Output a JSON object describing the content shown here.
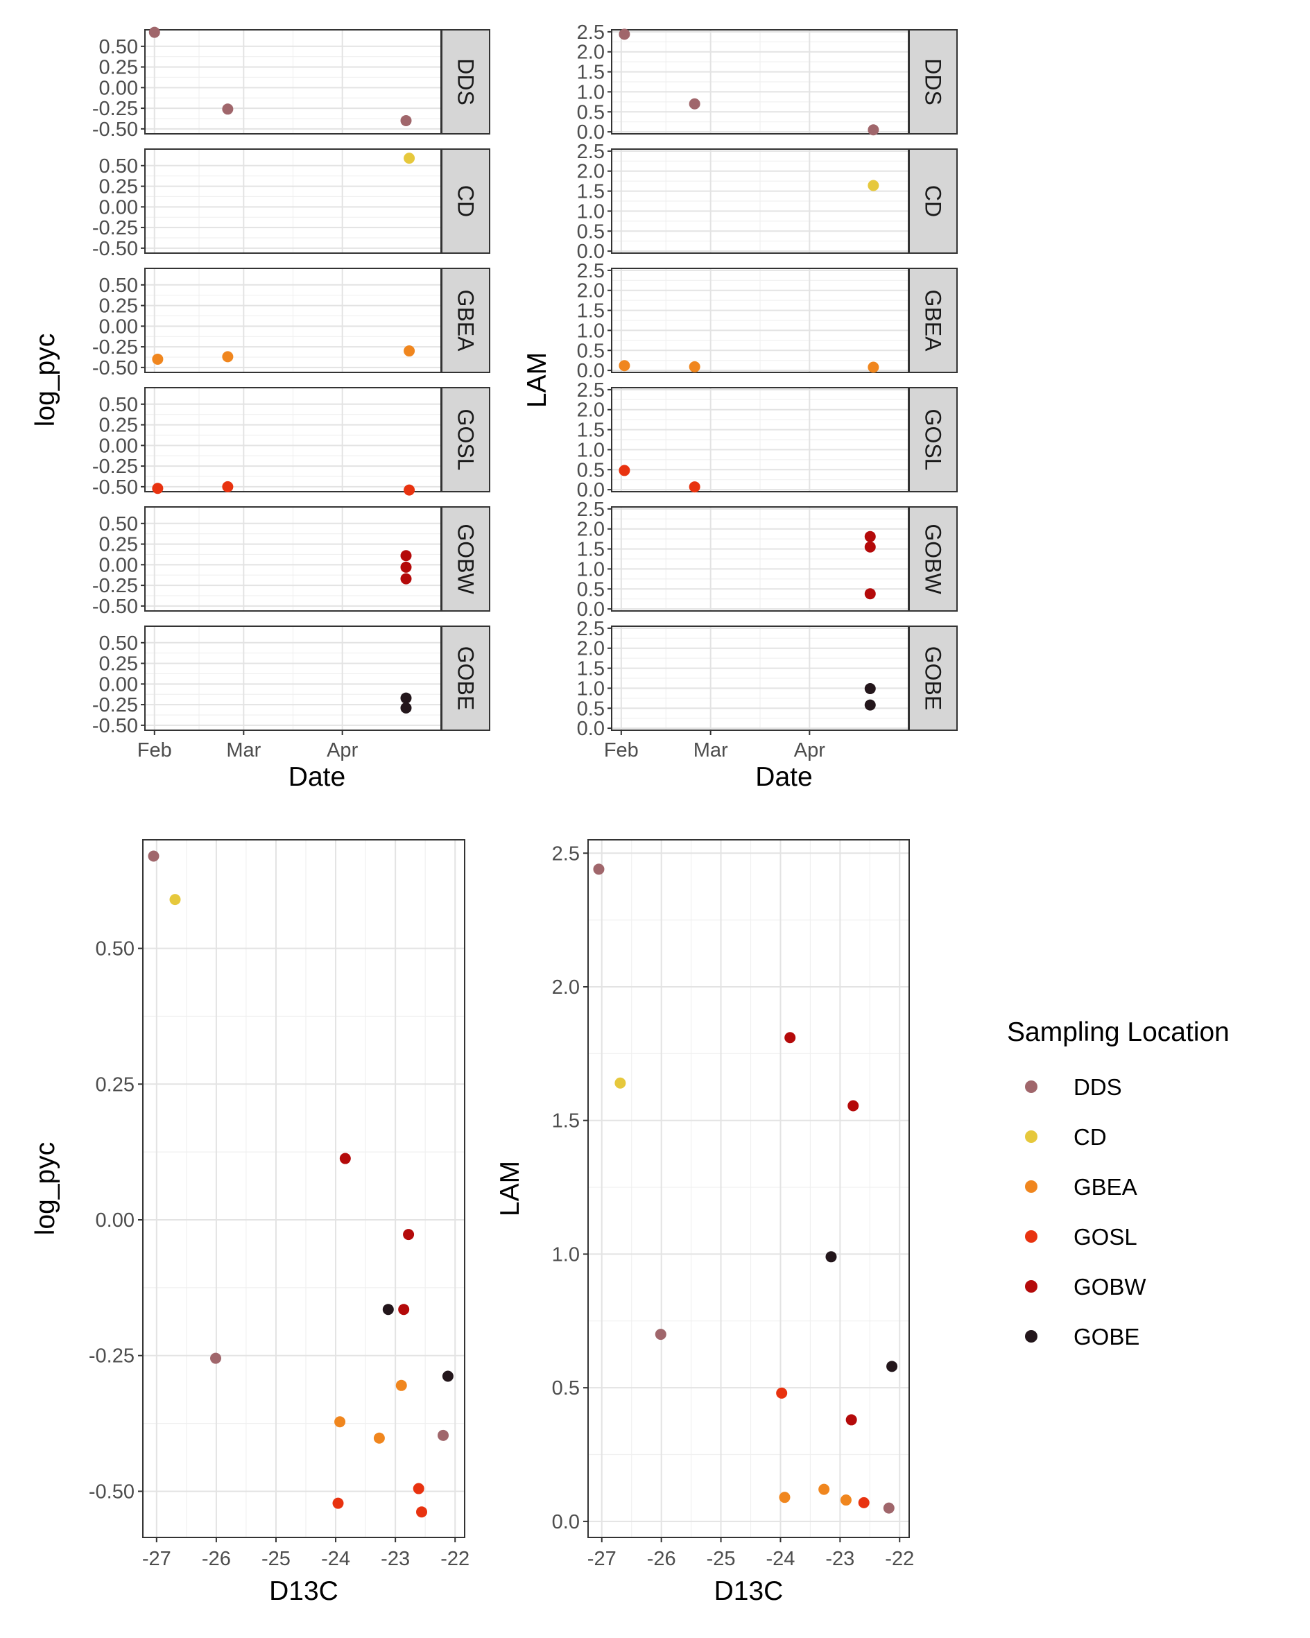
{
  "legend": {
    "title": "Sampling Location",
    "entries": [
      {
        "name": "DDS",
        "color": "#A0666B"
      },
      {
        "name": "CD",
        "color": "#E6C83C"
      },
      {
        "name": "GBEA",
        "color": "#F0861E"
      },
      {
        "name": "GOSL",
        "color": "#E8320F"
      },
      {
        "name": "GOBW",
        "color": "#B40A0A"
      },
      {
        "name": "GOBE",
        "color": "#23161B"
      }
    ]
  },
  "chart_data": [
    {
      "id": "log_pyc-vs-date",
      "type": "scatter",
      "facets": [
        "DDS",
        "CD",
        "GBEA",
        "GOSL",
        "GOBW",
        "GOBE"
      ],
      "xlabel": "Date",
      "ylabel": "log_pyc",
      "x_ticks": [
        "Feb",
        "Mar",
        "Apr"
      ],
      "x_tick_dates": [
        "2021-02-01",
        "2021-03-01",
        "2021-04-01"
      ],
      "xlim": [
        "2021-01-29",
        "2021-05-02"
      ],
      "y_ticks": [
        "0.50",
        "0.25",
        "0.00",
        "-0.25",
        "-0.50"
      ],
      "ylim": [
        -0.56,
        0.7
      ],
      "grid": true,
      "points": [
        {
          "loc": "DDS",
          "date": "2021-02-01",
          "y": 0.67
        },
        {
          "loc": "DDS",
          "date": "2021-02-24",
          "y": -0.26
        },
        {
          "loc": "DDS",
          "date": "2021-04-21",
          "y": -0.4
        },
        {
          "loc": "CD",
          "date": "2021-04-22",
          "y": 0.59
        },
        {
          "loc": "GBEA",
          "date": "2021-02-02",
          "y": -0.4
        },
        {
          "loc": "GBEA",
          "date": "2021-02-24",
          "y": -0.37
        },
        {
          "loc": "GBEA",
          "date": "2021-04-22",
          "y": -0.3
        },
        {
          "loc": "GOSL",
          "date": "2021-02-02",
          "y": -0.52
        },
        {
          "loc": "GOSL",
          "date": "2021-02-24",
          "y": -0.5
        },
        {
          "loc": "GOSL",
          "date": "2021-04-22",
          "y": -0.54
        },
        {
          "loc": "GOBW",
          "date": "2021-04-21",
          "y": 0.11
        },
        {
          "loc": "GOBW",
          "date": "2021-04-21",
          "y": -0.03
        },
        {
          "loc": "GOBW",
          "date": "2021-04-21",
          "y": -0.17
        },
        {
          "loc": "GOBE",
          "date": "2021-04-21",
          "y": -0.17
        },
        {
          "loc": "GOBE",
          "date": "2021-04-21",
          "y": -0.29
        }
      ]
    },
    {
      "id": "lam-vs-date",
      "type": "scatter",
      "facets": [
        "DDS",
        "CD",
        "GBEA",
        "GOSL",
        "GOBW",
        "GOBE"
      ],
      "xlabel": "Date",
      "ylabel": "LAM",
      "x_ticks": [
        "Feb",
        "Mar",
        "Apr"
      ],
      "x_tick_dates": [
        "2021-02-01",
        "2021-03-01",
        "2021-04-01"
      ],
      "xlim": [
        "2021-01-29",
        "2021-05-02"
      ],
      "y_ticks": [
        "2.5",
        "2.0",
        "1.5",
        "1.0",
        "0.5",
        "0.0"
      ],
      "ylim": [
        -0.05,
        2.55
      ],
      "grid": true,
      "points": [
        {
          "loc": "DDS",
          "date": "2021-02-02",
          "y": 2.44
        },
        {
          "loc": "DDS",
          "date": "2021-02-24",
          "y": 0.7
        },
        {
          "loc": "DDS",
          "date": "2021-04-21",
          "y": 0.05
        },
        {
          "loc": "CD",
          "date": "2021-04-21",
          "y": 1.64
        },
        {
          "loc": "GBEA",
          "date": "2021-02-02",
          "y": 0.12
        },
        {
          "loc": "GBEA",
          "date": "2021-02-24",
          "y": 0.09
        },
        {
          "loc": "GBEA",
          "date": "2021-04-21",
          "y": 0.08
        },
        {
          "loc": "GOSL",
          "date": "2021-02-02",
          "y": 0.48
        },
        {
          "loc": "GOSL",
          "date": "2021-02-24",
          "y": 0.07
        },
        {
          "loc": "GOBW",
          "date": "2021-04-20",
          "y": 1.81
        },
        {
          "loc": "GOBW",
          "date": "2021-04-20",
          "y": 1.55
        },
        {
          "loc": "GOBW",
          "date": "2021-04-20",
          "y": 0.38
        },
        {
          "loc": "GOBE",
          "date": "2021-04-20",
          "y": 0.99
        },
        {
          "loc": "GOBE",
          "date": "2021-04-20",
          "y": 0.58
        }
      ]
    },
    {
      "id": "log_pyc-vs-d13c",
      "type": "scatter",
      "xlabel": "D13C",
      "ylabel": "log_pyc",
      "x_ticks": [
        "-27",
        "-26",
        "-25",
        "-24",
        "-23",
        "-22"
      ],
      "xlim": [
        -27.23,
        -21.84
      ],
      "y_ticks": [
        "0.50",
        "0.25",
        "0.00",
        "-0.25",
        "-0.50"
      ],
      "ylim": [
        -0.585,
        0.7
      ],
      "grid": true,
      "points": [
        {
          "loc": "DDS",
          "x": -27.05,
          "y": 0.67
        },
        {
          "loc": "CD",
          "x": -26.69,
          "y": 0.59
        },
        {
          "loc": "DDS",
          "x": -26.01,
          "y": -0.255
        },
        {
          "loc": "GOBW",
          "x": -23.84,
          "y": 0.113
        },
        {
          "loc": "GOBW",
          "x": -22.78,
          "y": -0.027
        },
        {
          "loc": "GOBE",
          "x": -23.12,
          "y": -0.165
        },
        {
          "loc": "GOBW",
          "x": -22.86,
          "y": -0.165
        },
        {
          "loc": "GBEA",
          "x": -22.9,
          "y": -0.305
        },
        {
          "loc": "GOBE",
          "x": -22.12,
          "y": -0.288
        },
        {
          "loc": "GBEA",
          "x": -23.93,
          "y": -0.372
        },
        {
          "loc": "GBEA",
          "x": -23.27,
          "y": -0.402
        },
        {
          "loc": "DDS",
          "x": -22.2,
          "y": -0.397
        },
        {
          "loc": "GOSL",
          "x": -23.96,
          "y": -0.522
        },
        {
          "loc": "GOSL",
          "x": -22.61,
          "y": -0.495
        },
        {
          "loc": "GOSL",
          "x": -22.56,
          "y": -0.538
        }
      ]
    },
    {
      "id": "lam-vs-d13c",
      "type": "scatter",
      "xlabel": "D13C",
      "ylabel": "LAM",
      "x_ticks": [
        "-27",
        "-26",
        "-25",
        "-24",
        "-23",
        "-22"
      ],
      "xlim": [
        -27.23,
        -21.84
      ],
      "y_ticks": [
        "2.5",
        "2.0",
        "1.5",
        "1.0",
        "0.5",
        "0.0"
      ],
      "ylim": [
        -0.06,
        2.55
      ],
      "grid": true,
      "points": [
        {
          "loc": "DDS",
          "x": -27.05,
          "y": 2.44
        },
        {
          "loc": "CD",
          "x": -26.69,
          "y": 1.64
        },
        {
          "loc": "DDS",
          "x": -26.01,
          "y": 0.7
        },
        {
          "loc": "GOBW",
          "x": -23.84,
          "y": 1.81
        },
        {
          "loc": "GOBW",
          "x": -22.78,
          "y": 1.555
        },
        {
          "loc": "GOBE",
          "x": -23.15,
          "y": 0.99
        },
        {
          "loc": "GOBE",
          "x": -22.13,
          "y": 0.58
        },
        {
          "loc": "GOSL",
          "x": -23.98,
          "y": 0.48
        },
        {
          "loc": "GOBW",
          "x": -22.81,
          "y": 0.38
        },
        {
          "loc": "GBEA",
          "x": -23.93,
          "y": 0.09
        },
        {
          "loc": "GBEA",
          "x": -23.27,
          "y": 0.12
        },
        {
          "loc": "GBEA",
          "x": -22.9,
          "y": 0.08
        },
        {
          "loc": "GOSL",
          "x": -22.6,
          "y": 0.07
        },
        {
          "loc": "DDS",
          "x": -22.18,
          "y": 0.05
        }
      ]
    }
  ]
}
